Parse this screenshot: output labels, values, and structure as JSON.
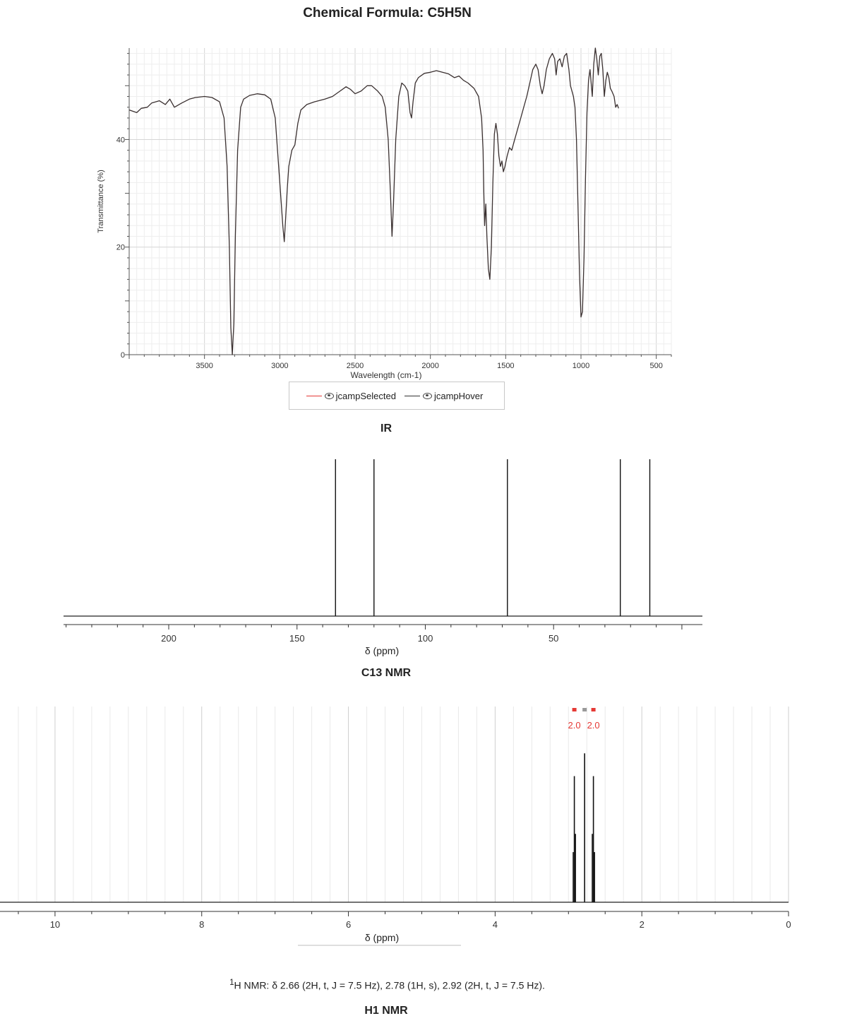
{
  "header": {
    "title": "Chemical Formula: C5H5N"
  },
  "legend": {
    "selected_label": "jcampSelected",
    "hover_label": "jcampHover",
    "selected_color": "#e53935",
    "hover_color": "#333333"
  },
  "sections": {
    "ir": "IR",
    "c13": "C13 NMR",
    "h1": "H1 NMR"
  },
  "h1_caption": {
    "prefix_sup": "1",
    "text": "H NMR: δ 2.66 (2H, t, J = 7.5 Hz), 2.78 (1H, s), 2.92 (2H, t, J = 7.5 Hz)."
  },
  "chart_data": [
    {
      "type": "line",
      "name": "ir",
      "xlabel": "Wavelength (cm-1)",
      "ylabel": "Transmittance (%)",
      "x_ticks": [
        3500,
        3000,
        2500,
        2000,
        1500,
        1000,
        500
      ],
      "y_ticks": [
        0,
        20,
        40
      ],
      "xlim": [
        4000,
        400
      ],
      "ylim": [
        0,
        57
      ],
      "x_reversed": true,
      "grid": true,
      "legend_position": "bottom",
      "line_color": "#3a3030",
      "points": [
        [
          4000,
          45.5
        ],
        [
          3950,
          45
        ],
        [
          3920,
          45.8
        ],
        [
          3880,
          46
        ],
        [
          3850,
          46.8
        ],
        [
          3800,
          47.2
        ],
        [
          3760,
          46.5
        ],
        [
          3730,
          47.5
        ],
        [
          3700,
          46
        ],
        [
          3650,
          46.8
        ],
        [
          3600,
          47.5
        ],
        [
          3560,
          47.8
        ],
        [
          3500,
          48
        ],
        [
          3450,
          47.8
        ],
        [
          3400,
          47
        ],
        [
          3370,
          44
        ],
        [
          3350,
          35
        ],
        [
          3335,
          20
        ],
        [
          3325,
          5
        ],
        [
          3315,
          0
        ],
        [
          3305,
          6
        ],
        [
          3295,
          22
        ],
        [
          3280,
          38
        ],
        [
          3260,
          46
        ],
        [
          3240,
          47.5
        ],
        [
          3200,
          48.2
        ],
        [
          3150,
          48.5
        ],
        [
          3100,
          48.3
        ],
        [
          3060,
          47.5
        ],
        [
          3030,
          44
        ],
        [
          3010,
          36
        ],
        [
          2990,
          28
        ],
        [
          2980,
          24
        ],
        [
          2970,
          21
        ],
        [
          2960,
          26
        ],
        [
          2950,
          31
        ],
        [
          2940,
          35
        ],
        [
          2920,
          38
        ],
        [
          2900,
          39
        ],
        [
          2880,
          43
        ],
        [
          2860,
          45.5
        ],
        [
          2820,
          46.5
        ],
        [
          2770,
          47
        ],
        [
          2700,
          47.5
        ],
        [
          2650,
          48
        ],
        [
          2600,
          49
        ],
        [
          2560,
          49.8
        ],
        [
          2530,
          49.3
        ],
        [
          2500,
          48.5
        ],
        [
          2460,
          49
        ],
        [
          2420,
          50
        ],
        [
          2390,
          50
        ],
        [
          2350,
          49
        ],
        [
          2320,
          48
        ],
        [
          2300,
          46
        ],
        [
          2280,
          40
        ],
        [
          2265,
          30
        ],
        [
          2255,
          22
        ],
        [
          2245,
          28
        ],
        [
          2230,
          40
        ],
        [
          2210,
          48
        ],
        [
          2190,
          50.5
        ],
        [
          2170,
          50
        ],
        [
          2150,
          49
        ],
        [
          2135,
          45
        ],
        [
          2125,
          44
        ],
        [
          2115,
          47
        ],
        [
          2100,
          50.5
        ],
        [
          2080,
          51.5
        ],
        [
          2040,
          52.3
        ],
        [
          2000,
          52.5
        ],
        [
          1960,
          52.8
        ],
        [
          1920,
          52.5
        ],
        [
          1880,
          52.2
        ],
        [
          1840,
          51.5
        ],
        [
          1810,
          51.8
        ],
        [
          1780,
          51
        ],
        [
          1750,
          50.5
        ],
        [
          1710,
          49.5
        ],
        [
          1680,
          48
        ],
        [
          1660,
          44
        ],
        [
          1650,
          38
        ],
        [
          1645,
          30
        ],
        [
          1640,
          24
        ],
        [
          1632,
          28
        ],
        [
          1625,
          22
        ],
        [
          1615,
          16
        ],
        [
          1605,
          14
        ],
        [
          1595,
          20
        ],
        [
          1585,
          32
        ],
        [
          1575,
          41
        ],
        [
          1565,
          43
        ],
        [
          1555,
          41
        ],
        [
          1545,
          37
        ],
        [
          1535,
          35
        ],
        [
          1525,
          36
        ],
        [
          1515,
          34
        ],
        [
          1505,
          35
        ],
        [
          1490,
          37
        ],
        [
          1475,
          38.5
        ],
        [
          1460,
          38
        ],
        [
          1440,
          40
        ],
        [
          1420,
          42
        ],
        [
          1400,
          44
        ],
        [
          1380,
          46
        ],
        [
          1360,
          48
        ],
        [
          1340,
          50.5
        ],
        [
          1320,
          53
        ],
        [
          1300,
          54
        ],
        [
          1285,
          53
        ],
        [
          1270,
          50
        ],
        [
          1258,
          48.5
        ],
        [
          1245,
          50
        ],
        [
          1230,
          53
        ],
        [
          1210,
          55
        ],
        [
          1190,
          56
        ],
        [
          1175,
          55
        ],
        [
          1165,
          52
        ],
        [
          1155,
          54.5
        ],
        [
          1140,
          55
        ],
        [
          1125,
          53.5
        ],
        [
          1110,
          55.5
        ],
        [
          1095,
          56
        ],
        [
          1080,
          53
        ],
        [
          1070,
          50
        ],
        [
          1060,
          49
        ],
        [
          1050,
          48
        ],
        [
          1040,
          46
        ],
        [
          1030,
          40
        ],
        [
          1020,
          28
        ],
        [
          1010,
          15
        ],
        [
          1000,
          7
        ],
        [
          990,
          8
        ],
        [
          980,
          18
        ],
        [
          970,
          33
        ],
        [
          960,
          45
        ],
        [
          950,
          51
        ],
        [
          940,
          53
        ],
        [
          925,
          48
        ],
        [
          915,
          54
        ],
        [
          905,
          57
        ],
        [
          895,
          55
        ],
        [
          885,
          52
        ],
        [
          875,
          55.5
        ],
        [
          865,
          56
        ],
        [
          855,
          53
        ],
        [
          845,
          48
        ],
        [
          835,
          51
        ],
        [
          825,
          52.5
        ],
        [
          815,
          51.5
        ],
        [
          805,
          49.5
        ],
        [
          795,
          49
        ],
        [
          780,
          48
        ],
        [
          770,
          46
        ],
        [
          760,
          46.5
        ],
        [
          750,
          45.8
        ]
      ]
    },
    {
      "type": "bar",
      "name": "c13",
      "xlabel": "δ (ppm)",
      "x_ticks": [
        200,
        150,
        100,
        50
      ],
      "xlim": [
        241,
        -8
      ],
      "x_reversed": true,
      "peaks_ppm": [
        135,
        120,
        68,
        24,
        12.5
      ]
    },
    {
      "type": "bar",
      "name": "h1",
      "xlabel": "δ (ppm)",
      "x_ticks": [
        10,
        8,
        6,
        4,
        2,
        0
      ],
      "xlim": [
        10.75,
        0
      ],
      "x_reversed": true,
      "grid": true,
      "integrations": [
        {
          "center_ppm": 2.92,
          "label": "2.0"
        },
        {
          "center_ppm": 2.78,
          "label": ""
        },
        {
          "center_ppm": 2.66,
          "label": "2.0"
        }
      ],
      "peaks": [
        {
          "ppm": 2.935,
          "rel": 0.33
        },
        {
          "ppm": 2.92,
          "rel": 0.83
        },
        {
          "ppm": 2.905,
          "rel": 0.45
        },
        {
          "ppm": 2.78,
          "rel": 0.98
        },
        {
          "ppm": 2.675,
          "rel": 0.45
        },
        {
          "ppm": 2.66,
          "rel": 0.83
        },
        {
          "ppm": 2.645,
          "rel": 0.33
        }
      ],
      "integration_color": "#e53935"
    }
  ]
}
